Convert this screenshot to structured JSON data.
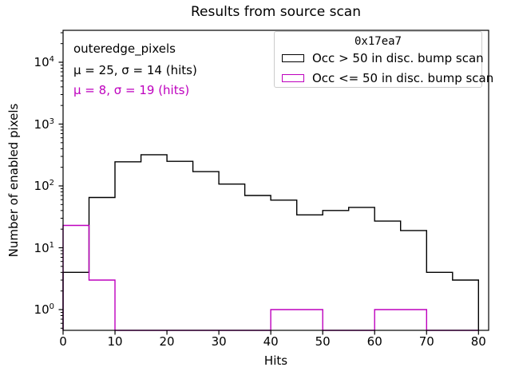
{
  "figure_title": "Results from source scan",
  "chart_data": {
    "type": "histogram-step",
    "title": "Results from source scan",
    "xlabel": "Hits",
    "ylabel": "Number of enabled pixels",
    "x_scale": "linear",
    "y_scale": "log",
    "xlim": [
      0,
      82
    ],
    "ylim": [
      0.46,
      33000
    ],
    "x_ticks": [
      0,
      10,
      20,
      30,
      40,
      50,
      60,
      70,
      80
    ],
    "y_tick_exponents": [
      0,
      1,
      2,
      3,
      4
    ],
    "grid": false,
    "legend": {
      "position": "upper right",
      "title": "0x17ea7"
    },
    "bin_edges": [
      0,
      5,
      10,
      15,
      20,
      25,
      30,
      35,
      40,
      45,
      50,
      55,
      60,
      65,
      70,
      75,
      80
    ],
    "series": [
      {
        "name": "Occ > 50 in disc. bump scan",
        "color": "#000000",
        "values": [
          4,
          65,
          245,
          320,
          250,
          170,
          107,
          70,
          59,
          34,
          40,
          45,
          27,
          19,
          4,
          3
        ]
      },
      {
        "name": "Occ <= 50 in disc. bump scan",
        "color": "#be00be",
        "values": [
          23,
          3,
          0,
          0,
          0,
          0,
          0,
          0,
          1,
          1,
          0,
          0,
          1,
          1,
          0,
          0
        ]
      }
    ],
    "annotations": [
      {
        "text": "outeredge_pixels",
        "color": "#000000"
      },
      {
        "text": "μ = 25, σ = 14 (hits)",
        "color": "#000000"
      },
      {
        "text": "μ = 8, σ = 19 (hits)",
        "color": "#be00be"
      }
    ]
  }
}
